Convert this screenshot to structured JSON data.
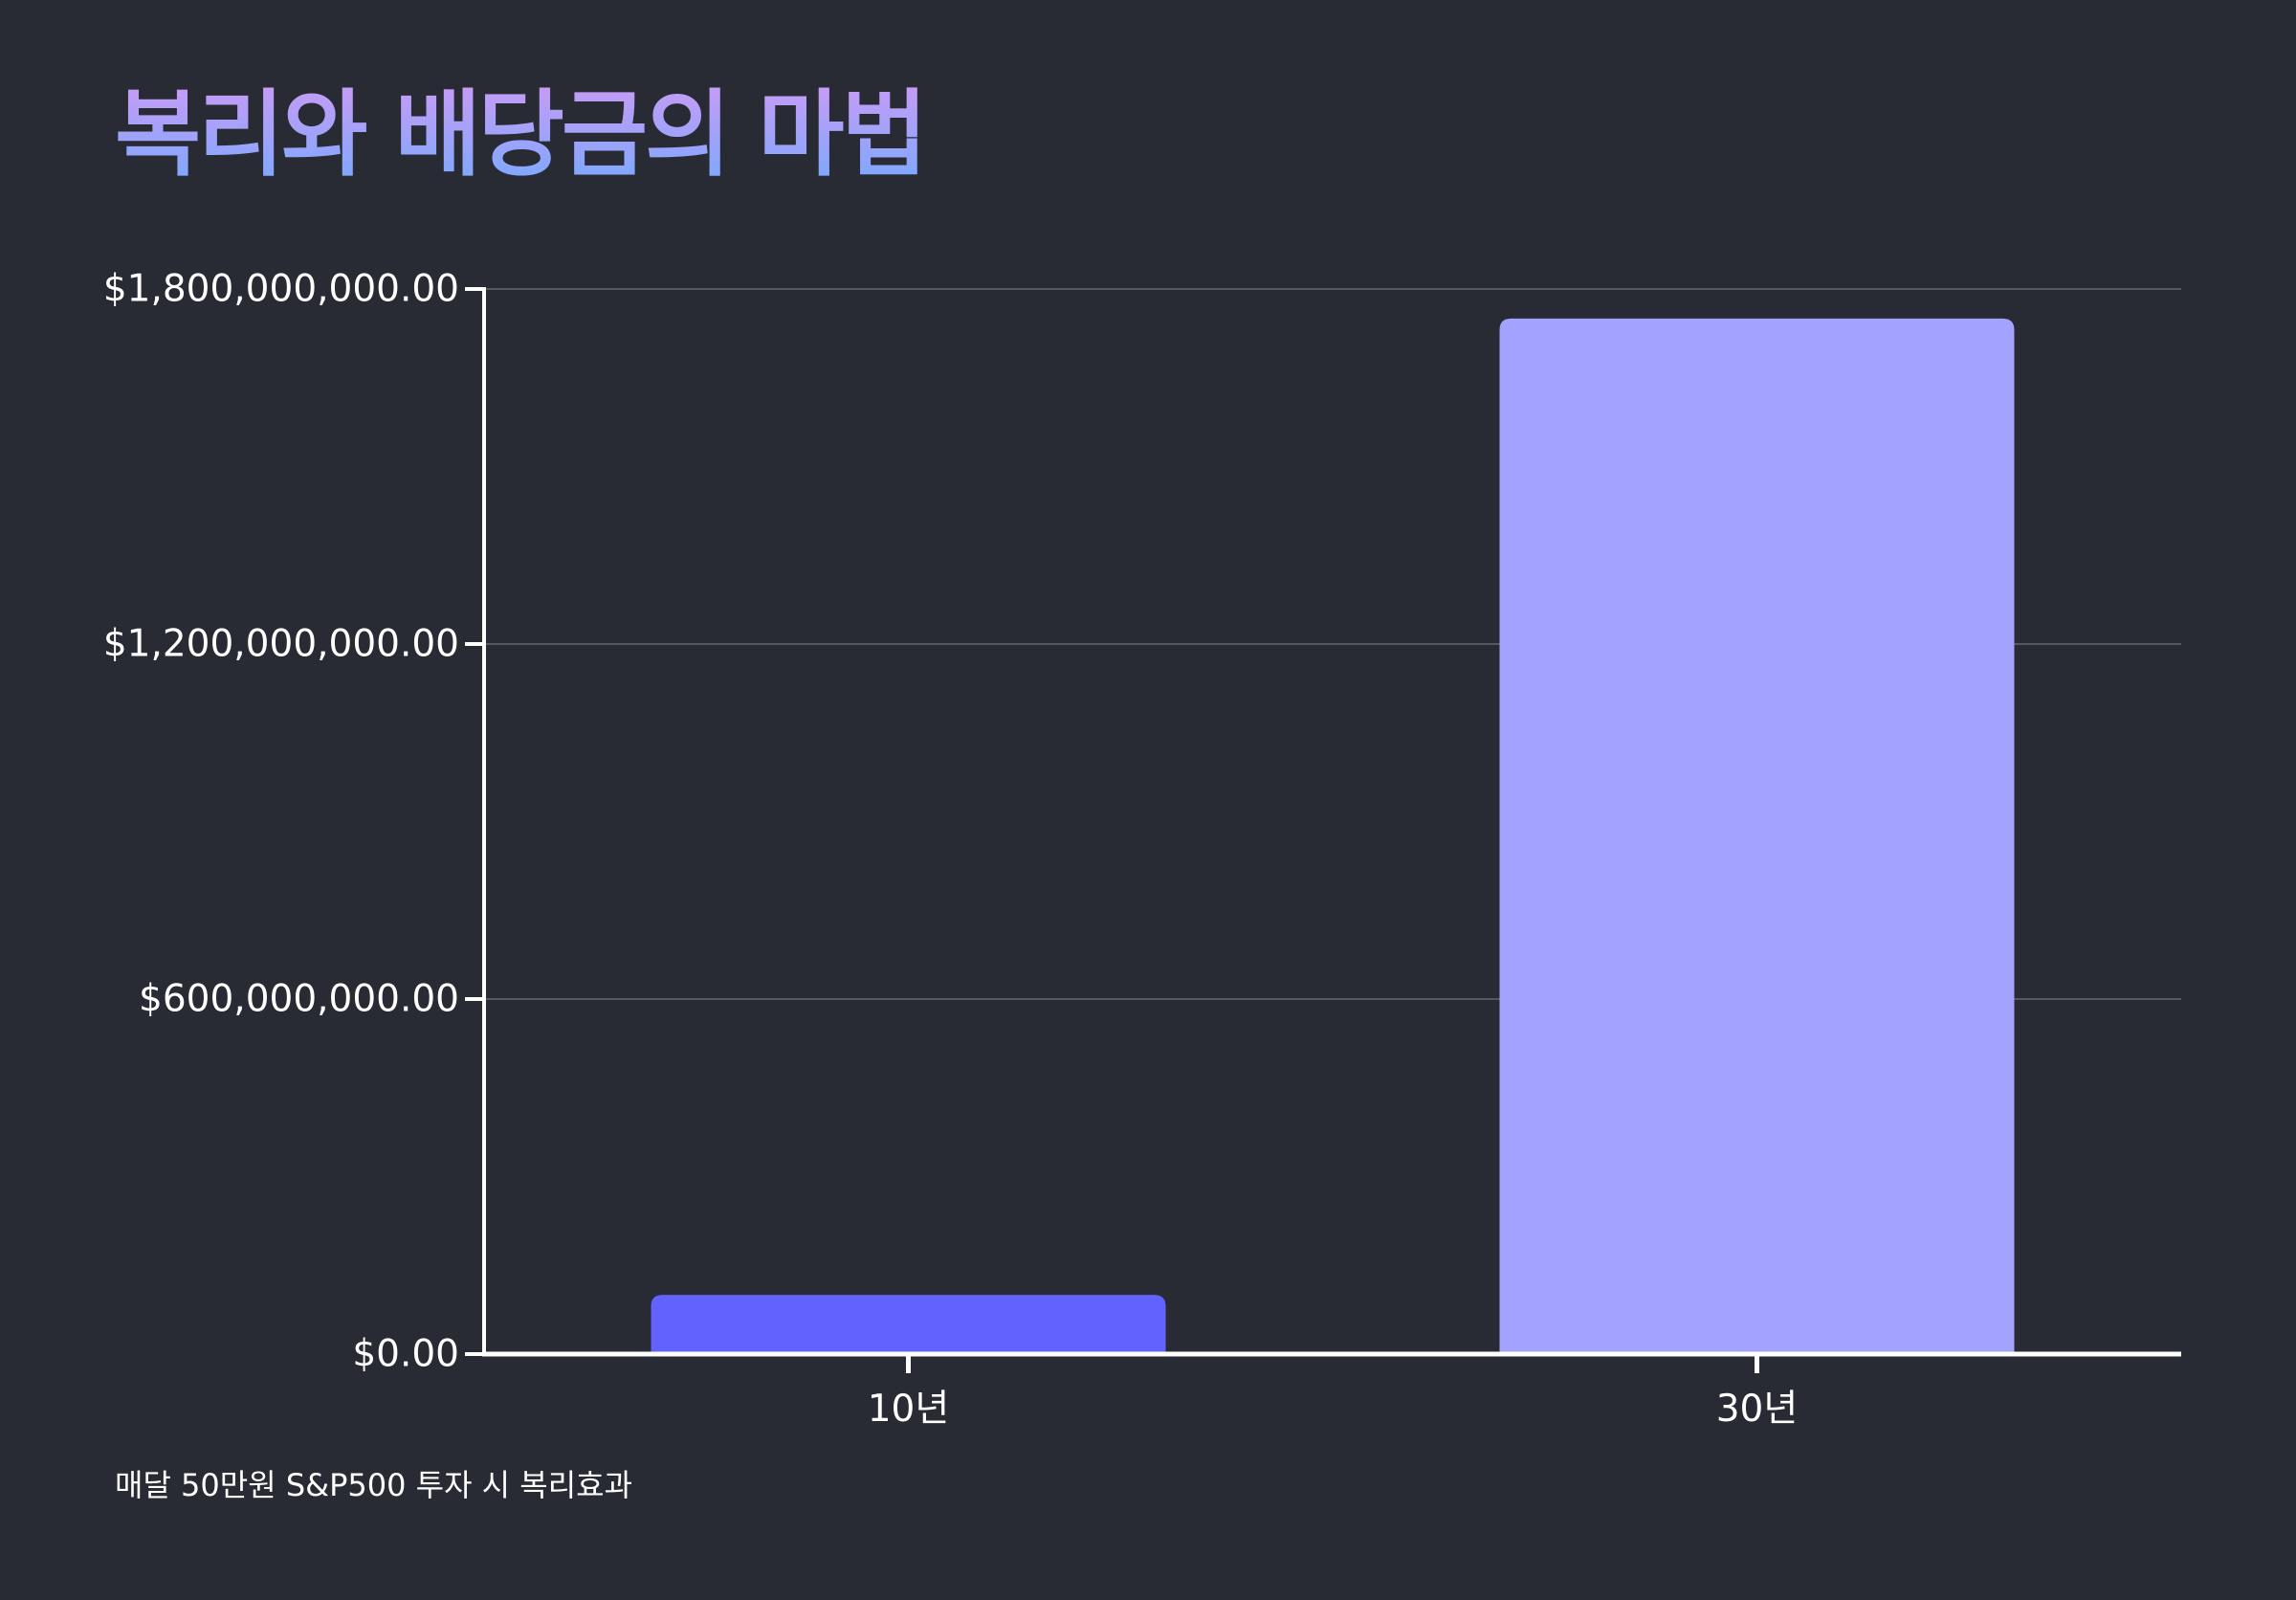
{
  "title": "복리와 배당금의 마법",
  "caption": "매달 50만원 S&P500 투자 시 복리효과",
  "colors": {
    "background": "#282b33",
    "title_gradient_top": "#c79cf6",
    "title_gradient_bottom": "#7aa9ff",
    "grid": "#55585f",
    "axis": "#ffffff"
  },
  "chart_data": {
    "type": "bar",
    "title": "복리와 배당금의 마법",
    "categories": [
      "10년",
      "30년"
    ],
    "values": [
      100000000,
      1750000000
    ],
    "bar_colors": [
      "#6262ff",
      "#a3a3ff"
    ],
    "ylim": [
      0,
      1800000000
    ],
    "yticks": [
      0,
      600000000,
      1200000000,
      1800000000
    ],
    "ytick_labels": [
      "$0.00",
      "$600,000,000.00",
      "$1,200,000,000.00",
      "$1,800,000,000.00"
    ],
    "grid": true,
    "xlabel": "",
    "ylabel": ""
  }
}
